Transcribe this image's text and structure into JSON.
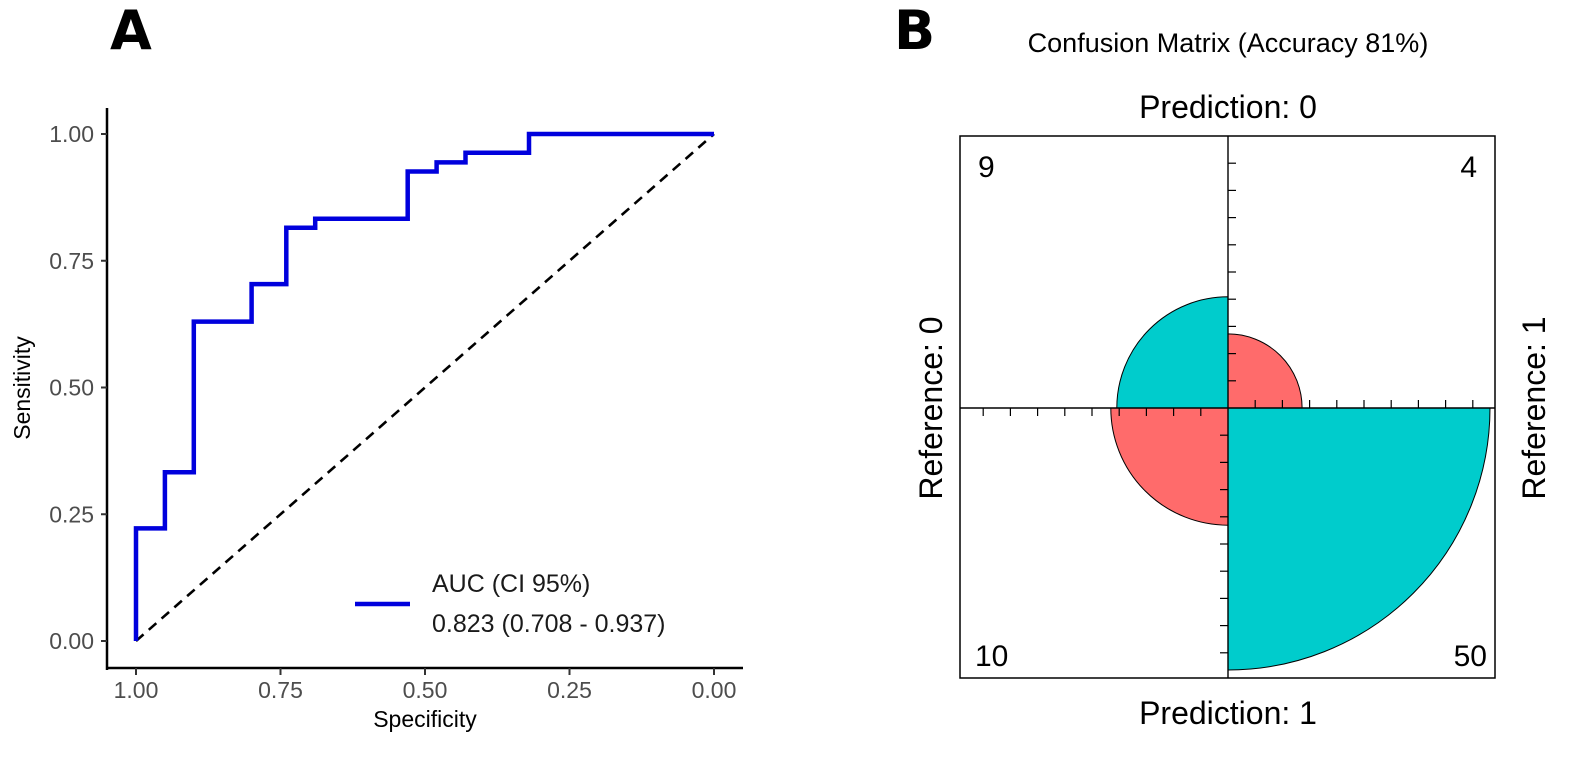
{
  "panel_labels": {
    "a": "A",
    "b": "B"
  },
  "chart_data": [
    {
      "type": "line",
      "subtype": "roc",
      "xlabel": "Specificity",
      "ylabel": "Sensitivity",
      "xlim": [
        1.0,
        0.0
      ],
      "ylim": [
        0.0,
        1.0
      ],
      "x_ticks": [
        1.0,
        0.75,
        0.5,
        0.25,
        0.0
      ],
      "x_tick_labels": [
        "1.00",
        "0.75",
        "0.50",
        "0.25",
        "0.00"
      ],
      "y_ticks": [
        0.0,
        0.25,
        0.5,
        0.75,
        1.0
      ],
      "y_tick_labels": [
        "0.00",
        "0.25",
        "0.50",
        "0.75",
        "1.00"
      ],
      "series": [
        {
          "name": "ROC",
          "color": "#0000dd",
          "specificity": [
            1.0,
            1.0,
            0.95,
            0.95,
            0.9,
            0.9,
            0.8,
            0.8,
            0.74,
            0.74,
            0.69,
            0.69,
            0.53,
            0.53,
            0.48,
            0.48,
            0.43,
            0.43,
            0.32,
            0.32,
            0.0
          ],
          "sensitivity": [
            0.0,
            0.222,
            0.222,
            0.333,
            0.333,
            0.63,
            0.63,
            0.704,
            0.704,
            0.815,
            0.815,
            0.833,
            0.833,
            0.926,
            0.926,
            0.944,
            0.944,
            0.963,
            0.963,
            1.0,
            1.0
          ]
        },
        {
          "name": "chance",
          "color": "#000000",
          "style": "dashed",
          "specificity": [
            1.0,
            0.0
          ],
          "sensitivity": [
            0.0,
            1.0
          ]
        }
      ],
      "legend": {
        "position": "bottom-right",
        "title": "AUC (CI 95%)",
        "entry": "0.823 (0.708 - 0.937)"
      }
    },
    {
      "type": "fourfold",
      "title": "Confusion Matrix (Accuracy 81%)",
      "top_label": "Prediction: 0",
      "bottom_label": "Prediction: 1",
      "left_label": "Reference: 0",
      "right_label": "Reference: 1",
      "cells": [
        {
          "quadrant": "top-left",
          "count": "9",
          "value": 9,
          "color": "#00cccc"
        },
        {
          "quadrant": "top-right",
          "count": "4",
          "value": 4,
          "color": "#ff6b6b"
        },
        {
          "quadrant": "bottom-left",
          "count": "10",
          "value": 10,
          "color": "#ff6b6b"
        },
        {
          "quadrant": "bottom-right",
          "count": "50",
          "value": 50,
          "color": "#00cccc"
        }
      ]
    }
  ]
}
